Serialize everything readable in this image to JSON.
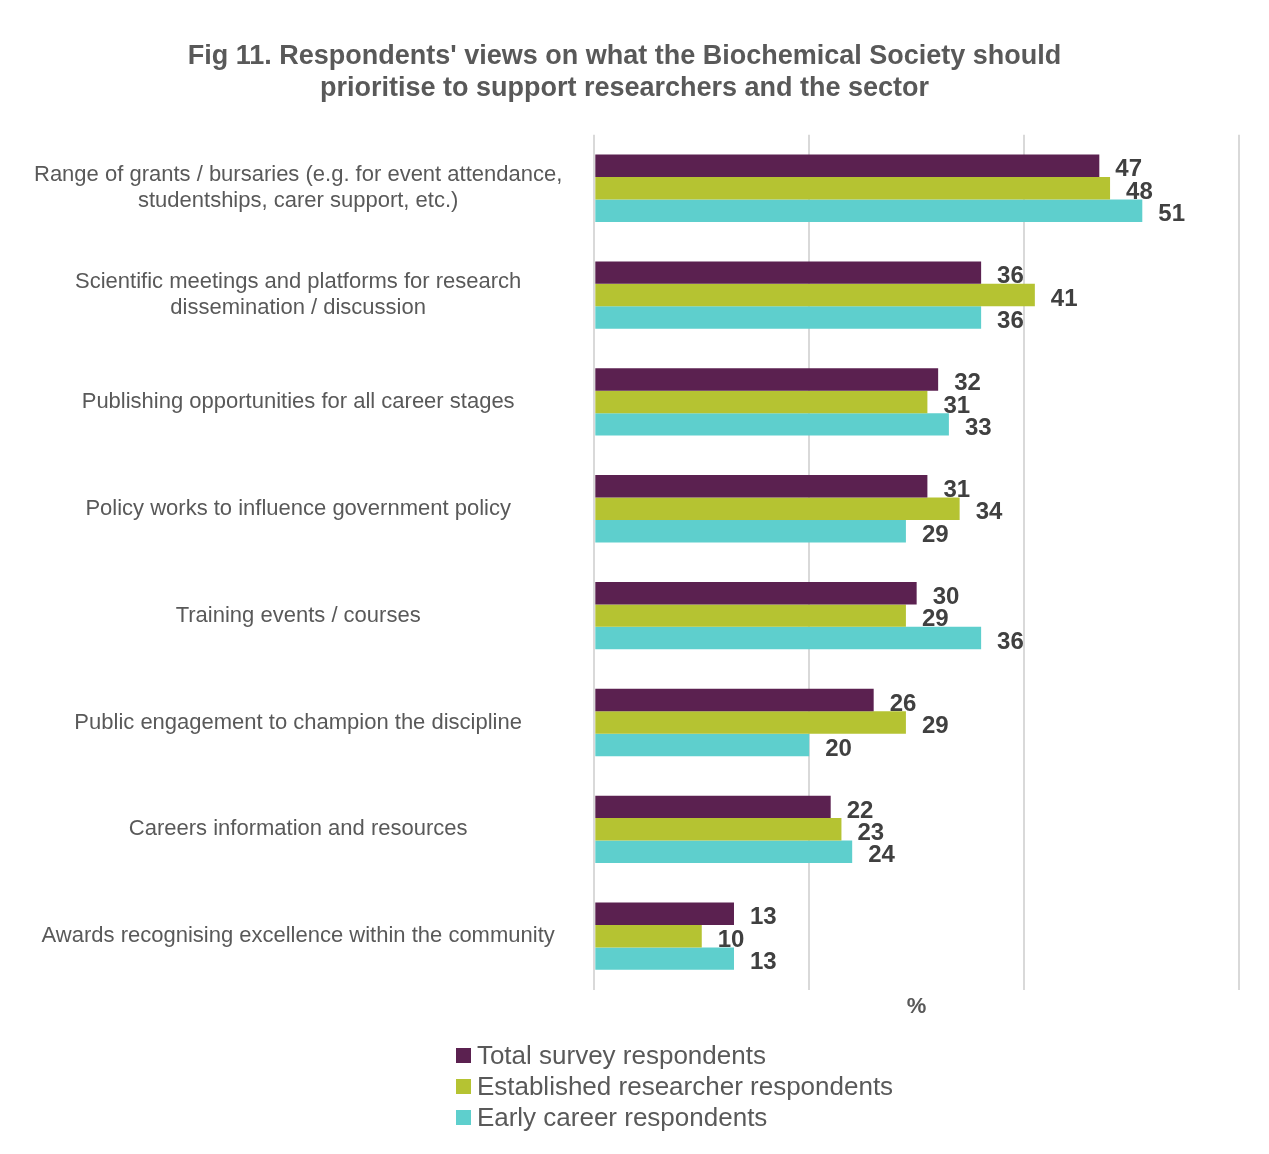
{
  "chart_data": {
    "type": "bar",
    "orientation": "horizontal",
    "title": "Fig 11. Respondents' views on what the Biochemical Society should prioritise to support researchers and the sector",
    "xlabel": "%",
    "categories": [
      "Range of grants / bursaries (e.g. for event attendance, studentships, carer support, etc.)",
      "Scientific meetings and platforms for research dissemination / discussion",
      "Publishing opportunities for all career stages",
      "Policy works to influence government policy",
      "Training events / courses",
      "Public engagement to champion the discipline",
      "Careers information and resources",
      "Awards recognising excellence within the community"
    ],
    "series": [
      {
        "name": "Total survey respondents",
        "color": "#5b2150",
        "values": [
          47,
          36,
          32,
          31,
          30,
          26,
          22,
          13
        ]
      },
      {
        "name": "Established researcher respondents",
        "color": "#b5c332",
        "values": [
          48,
          41,
          31,
          34,
          29,
          29,
          23,
          10
        ]
      },
      {
        "name": "Early career respondents",
        "color": "#5ecfcd",
        "values": [
          51,
          36,
          33,
          29,
          36,
          20,
          24,
          13
        ]
      }
    ],
    "xlim": [
      0,
      60
    ],
    "xticks": [
      {
        "value": 0,
        "label": null
      },
      {
        "value": 20,
        "label": null
      },
      {
        "value": 40,
        "label": null
      },
      {
        "value": 60,
        "label": null
      }
    ],
    "tick_labels": "y",
    "grid": "x",
    "legend": "bottom",
    "data_labels": true
  }
}
